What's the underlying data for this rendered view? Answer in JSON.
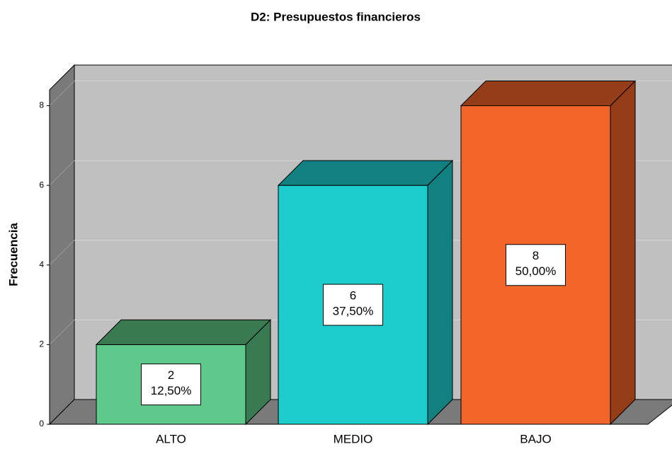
{
  "chart_data": {
    "type": "bar",
    "title": "D2: Presupuestos financieros",
    "ylabel": "Frecuencia",
    "categories": [
      "ALTO",
      "MEDIO",
      "BAJO"
    ],
    "values": [
      2,
      6,
      8
    ],
    "percent_labels": [
      "12,50%",
      "37,50%",
      "50,00%"
    ],
    "colors": [
      "#5ec98a",
      "#1dcdcd",
      "#f2662b"
    ],
    "side_colors": [
      "#3a7a52",
      "#128080",
      "#953c18"
    ],
    "ylim": [
      0,
      8.4
    ],
    "yticks": [
      0,
      2,
      4,
      6,
      8
    ],
    "grid": true
  }
}
